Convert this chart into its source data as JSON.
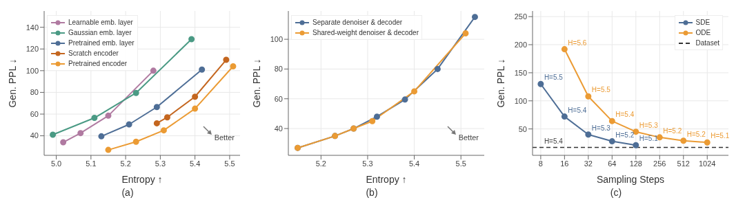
{
  "chart_data": [
    {
      "type": "line",
      "xlabel": "Entropy ↑",
      "ylabel": "Gen. PPL ↓",
      "xlim": [
        4.965,
        5.53
      ],
      "xticks": [
        {
          "value": 5,
          "label": "5.0"
        },
        5.1,
        5.2,
        5.3,
        5.4,
        5.5
      ],
      "ylim": [
        22,
        155
      ],
      "yticks": [
        40,
        60,
        80,
        100,
        120,
        140
      ],
      "grid": true,
      "legend": "top left",
      "marker": "circle",
      "line_style": "solid",
      "series": [
        {
          "name": "Learnable emb. layer",
          "color": "#b07aa1",
          "x": [
            5.02,
            5.07,
            5.15,
            5.28
          ],
          "values": [
            34,
            42.5,
            58.5,
            100
          ]
        },
        {
          "name": "Gaussian emb. layer",
          "color": "#4a9a84",
          "x": [
            4.99,
            5.11,
            5.23,
            5.39
          ],
          "values": [
            41,
            56.5,
            79.5,
            129
          ]
        },
        {
          "name": "Pretrained emb. layer",
          "color": "#4e6e96",
          "x": [
            5.13,
            5.21,
            5.29,
            5.42
          ],
          "values": [
            39.5,
            50.5,
            66.5,
            101
          ]
        },
        {
          "name": "Scratch encoder",
          "color": "#c4661f",
          "x": [
            5.29,
            5.32,
            5.4,
            5.49
          ],
          "values": [
            51.5,
            57,
            76,
            110
          ]
        },
        {
          "name": "Pretrained encoder",
          "color": "#eb9b34",
          "x": [
            5.15,
            5.23,
            5.31,
            5.4,
            5.51
          ],
          "values": [
            27,
            34.5,
            45,
            65,
            104
          ]
        }
      ],
      "annotations": [
        "Better",
        "(a)"
      ]
    },
    {
      "type": "line",
      "xlabel": "Entropy ↑",
      "ylabel": "Gen. PPL ↓",
      "xlim": [
        5.13,
        5.55
      ],
      "xticks": [
        5.2,
        5.3,
        5.4,
        5.5
      ],
      "ylim": [
        22,
        119
      ],
      "yticks": [
        40,
        60,
        80,
        100
      ],
      "grid": true,
      "legend": "top left",
      "marker": "circle",
      "line_style": "solid",
      "series": [
        {
          "name": "Separate denoiser & decoder",
          "color": "#4e6e96",
          "x": [
            5.15,
            5.23,
            5.27,
            5.32,
            5.38,
            5.45,
            5.53
          ],
          "values": [
            27,
            35,
            40,
            48,
            59.5,
            80,
            115
          ]
        },
        {
          "name": "Shared-weight denoiser & decoder",
          "color": "#eb9b34",
          "x": [
            5.15,
            5.23,
            5.27,
            5.31,
            5.4,
            5.51
          ],
          "values": [
            27,
            35,
            40,
            45,
            65,
            104
          ]
        }
      ],
      "annotations": [
        "Better",
        "(b)"
      ]
    },
    {
      "type": "line",
      "xlabel": "Sampling Steps",
      "ylabel": "Gen. PPL ↓",
      "log": "x",
      "xlim": [
        6.3,
        1900
      ],
      "xticks": [
        8,
        16,
        32,
        64,
        128,
        256,
        512,
        1024
      ],
      "ylim": [
        3,
        260
      ],
      "yticks": [
        50,
        100,
        150,
        200,
        250
      ],
      "grid": true,
      "legend": "top right",
      "marker": "circle",
      "line_style": "solid",
      "series": [
        {
          "name": "SDE",
          "color": "#4e6e96",
          "x": [
            8,
            16,
            32,
            64,
            128
          ],
          "values": [
            130,
            72,
            40,
            28,
            21
          ]
        },
        {
          "name": "ODE",
          "color": "#eb9b34",
          "x": [
            16,
            32,
            64,
            128,
            256,
            512,
            1024
          ],
          "values": [
            192,
            108,
            64,
            45,
            35,
            29,
            26
          ]
        }
      ],
      "ref_lines": [
        {
          "axis": "y",
          "value": 17,
          "label": "Dataset",
          "color": "#333333",
          "line_style": "dashed"
        }
      ],
      "annotations": [
        {
          "text": "H=5.5",
          "x": 8,
          "y": 130
        },
        {
          "text": "H=5.4",
          "x": 16,
          "y": 72
        },
        {
          "text": "H=5.3",
          "x": 32,
          "y": 40
        },
        {
          "text": "H=5.2",
          "x": 64,
          "y": 28
        },
        {
          "text": "H=5.1",
          "x": 128,
          "y": 21
        },
        {
          "text": "H=5.6",
          "x": 16,
          "y": 192
        },
        {
          "text": "H=5.5",
          "x": 32,
          "y": 108
        },
        {
          "text": "H=5.4",
          "x": 64,
          "y": 64
        },
        {
          "text": "H=5.3",
          "x": 128,
          "y": 45
        },
        {
          "text": "H=5.2",
          "x": 256,
          "y": 35
        },
        {
          "text": "H=5.2",
          "x": 512,
          "y": 29
        },
        {
          "text": "H=5.1",
          "x": 1024,
          "y": 26
        },
        {
          "text": "H=5.4",
          "x": 8,
          "y": 17
        },
        "(c)"
      ]
    }
  ]
}
